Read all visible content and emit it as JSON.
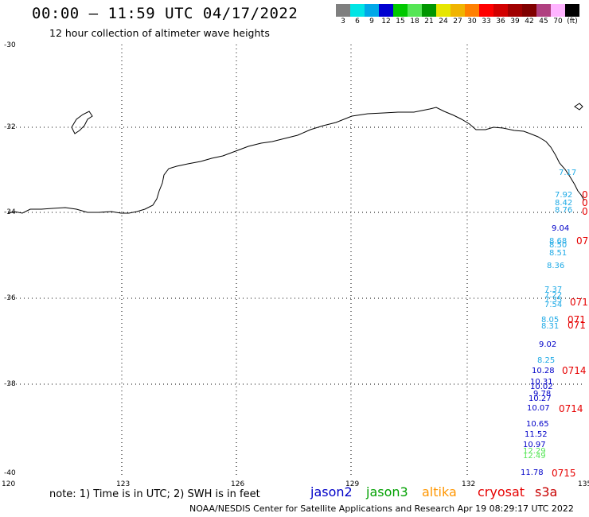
{
  "header": {
    "title": "00:00 – 11:59 UTC 04/17/2022",
    "subtitle": "12 hour collection of altimeter wave heights"
  },
  "colorbar": {
    "colors": [
      "#7f7f7f",
      "#00e5e5",
      "#00a8e8",
      "#0000d0",
      "#00c800",
      "#55e655",
      "#009600",
      "#e6e600",
      "#f0b400",
      "#ff8000",
      "#ff0000",
      "#d20000",
      "#a00000",
      "#800000",
      "#b04080",
      "#ffb4ff",
      "#000000"
    ],
    "labels": [
      "3",
      "6",
      "9",
      "12",
      "15",
      "18",
      "21",
      "24",
      "27",
      "30",
      "33",
      "36",
      "39",
      "42",
      "45",
      "70",
      "(ft)"
    ]
  },
  "axes": {
    "lat_labels": [
      "-30",
      "-32",
      "-34",
      "-36",
      "-38",
      "-40"
    ],
    "lon_labels": [
      "120",
      "123",
      "126",
      "129",
      "132",
      "135"
    ]
  },
  "observations": [
    {
      "v": "7.17",
      "c": "#1eaae6"
    },
    {
      "v": "7.92",
      "c": "#1eaae6"
    },
    {
      "v": "8.42",
      "c": "#1eaae6"
    },
    {
      "v": "8.76",
      "c": "#1eaae6"
    },
    {
      "v": "9.04",
      "c": "#0000c8"
    },
    {
      "v": "8.68",
      "c": "#1eaae6"
    },
    {
      "v": "8.50",
      "c": "#1eaae6"
    },
    {
      "v": "8.51",
      "c": "#1eaae6"
    },
    {
      "v": "8.36",
      "c": "#1eaae6"
    },
    {
      "v": "7.37",
      "c": "#1eaae6"
    },
    {
      "v": "7.22",
      "c": "#1eaae6"
    },
    {
      "v": "7.35",
      "c": "#1eaae6"
    },
    {
      "v": "7.54",
      "c": "#1eaae6"
    },
    {
      "v": "8.05",
      "c": "#1eaae6"
    },
    {
      "v": "8.31",
      "c": "#1eaae6"
    },
    {
      "v": "9.02",
      "c": "#0000c8"
    },
    {
      "v": "8.25",
      "c": "#1eaae6"
    },
    {
      "v": "10.28",
      "c": "#0000c8"
    },
    {
      "v": "10.31",
      "c": "#0000c8"
    },
    {
      "v": "10.02",
      "c": "#0000c8"
    },
    {
      "v": "9.78",
      "c": "#0000c8"
    },
    {
      "v": "10.27",
      "c": "#0000c8"
    },
    {
      "v": "10.07",
      "c": "#0000c8"
    },
    {
      "v": "10.65",
      "c": "#0000c8"
    },
    {
      "v": "11.52",
      "c": "#0000c8"
    },
    {
      "v": "10.97",
      "c": "#0000c8"
    },
    {
      "v": "12.29",
      "c": "#55e655"
    },
    {
      "v": "12.49",
      "c": "#55e655"
    },
    {
      "v": "11.78",
      "c": "#0000c8"
    }
  ],
  "pass_times": [
    "0",
    "0",
    "0",
    "07",
    "071",
    "071",
    "071",
    "0714",
    "0714",
    "0715"
  ],
  "note": "note: 1) Time is in UTC; 2) SWH is in feet",
  "satellites": [
    {
      "name": "jason2",
      "color": "#0000c8"
    },
    {
      "name": "jason3",
      "color": "#00a000"
    },
    {
      "name": "altika",
      "color": "#ff9600"
    },
    {
      "name": "cryosat",
      "color": "#e60000"
    },
    {
      "name": "s3a",
      "color": "#c80000"
    }
  ],
  "footer": "NOAA/NESDIS Center for Satellite Applications and Research   Apr 19 08:29:17 UTC 2022"
}
